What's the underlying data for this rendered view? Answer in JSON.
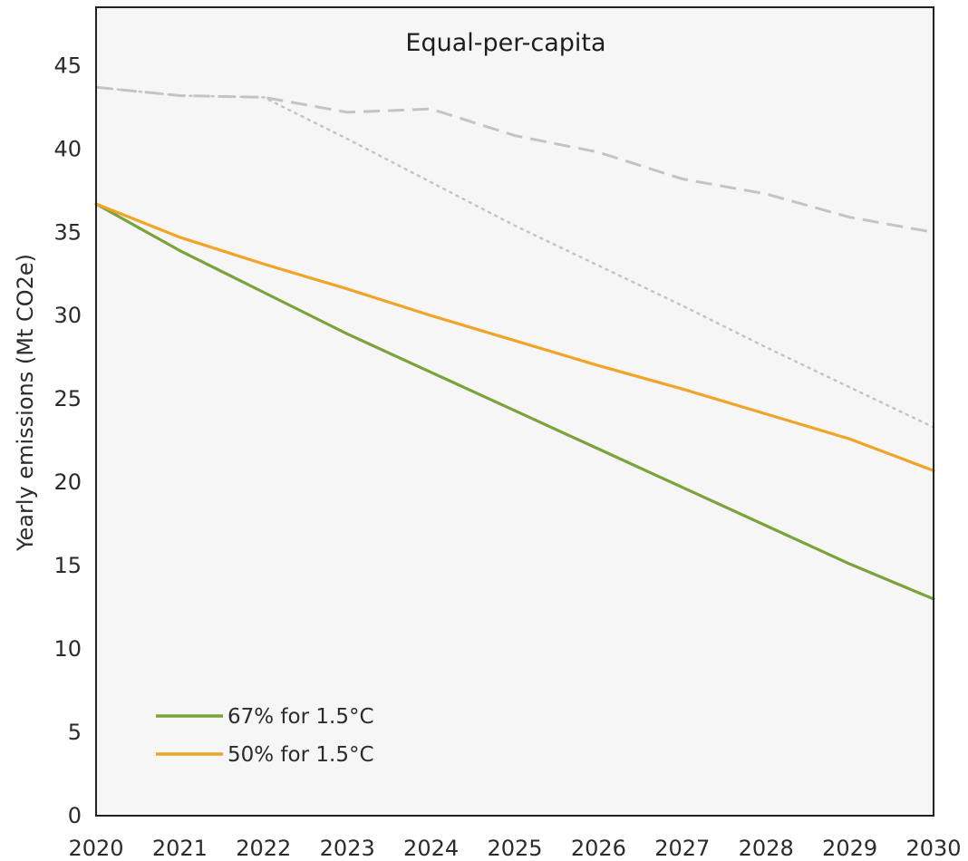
{
  "chart_data": {
    "type": "line",
    "title": "Equal-per-capita",
    "xlabel": "",
    "ylabel": "Yearly emissions (Mt CO2e)",
    "x": [
      2020,
      2021,
      2022,
      2023,
      2024,
      2025,
      2026,
      2027,
      2028,
      2029,
      2030
    ],
    "xlim": [
      2020,
      2030
    ],
    "ylim": [
      0,
      48.5
    ],
    "y_ticks": [
      0,
      5,
      10,
      15,
      20,
      25,
      30,
      35,
      40,
      45
    ],
    "grid": false,
    "legend_position": "bottom-left",
    "plot_background": "#f6f6f6",
    "series": [
      {
        "name": "67% for 1.5°C",
        "color": "#7aa33b",
        "style": "solid",
        "in_legend": true,
        "values": [
          36.7,
          33.9,
          31.4,
          28.9,
          26.6,
          24.3,
          22.0,
          19.7,
          17.4,
          15.1,
          13.0
        ]
      },
      {
        "name": "50% for 1.5°C",
        "color": "#f0a428",
        "style": "solid",
        "in_legend": true,
        "values": [
          36.7,
          34.7,
          33.1,
          31.6,
          30.0,
          28.5,
          27.0,
          25.6,
          24.1,
          22.6,
          20.7
        ]
      },
      {
        "color": "#c4c4c4",
        "style": "dashed",
        "in_legend": false,
        "values": [
          43.7,
          43.2,
          43.1,
          42.2,
          42.4,
          40.8,
          39.8,
          38.2,
          37.3,
          35.9,
          35.0
        ]
      },
      {
        "color": "#c4c4c4",
        "style": "dotted",
        "in_legend": false,
        "values": [
          43.7,
          43.2,
          43.1,
          40.6,
          38.0,
          35.4,
          33.0,
          30.6,
          28.1,
          25.7,
          23.3
        ]
      }
    ]
  }
}
